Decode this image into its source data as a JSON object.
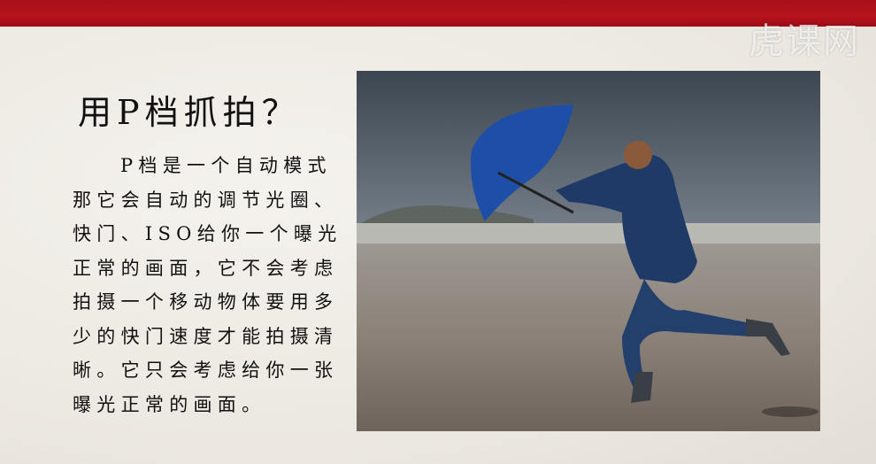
{
  "slide": {
    "title": "用P档抓拍？",
    "paragraph": [
      "P档是一个自动模式",
      "那它会自动的调节光圈、",
      "快门、ISO给你一个曝光",
      "正常的画面，它不会考虑",
      "拍摄一个移动物体要用多",
      "少的快门速度才能拍摄清",
      "晰。它只会考虑给你一张",
      "曝光正常的画面。"
    ],
    "watermark": "虎课网"
  }
}
